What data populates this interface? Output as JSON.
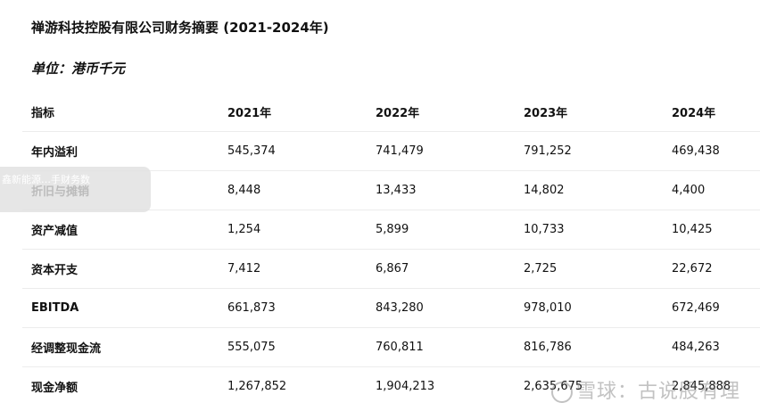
{
  "title": "禅游科技控股有限公司财务摘要 (2021-2024年)",
  "unit": "单位：港币千元",
  "table": {
    "headers": [
      "指标",
      "2021年",
      "2022年",
      "2023年",
      "2024年"
    ],
    "rows": [
      [
        "年内溢利",
        "545,374",
        "741,479",
        "791,252",
        "469,438"
      ],
      [
        "折旧与摊销",
        "8,448",
        "13,433",
        "14,802",
        "4,400"
      ],
      [
        "资产减值",
        "1,254",
        "5,899",
        "10,733",
        "10,425"
      ],
      [
        "资本开支",
        "7,412",
        "6,867",
        "2,725",
        "22,672"
      ],
      [
        "EBITDA",
        "661,873",
        "843,280",
        "978,010",
        "672,469"
      ],
      [
        "经调整现金流",
        "555,075",
        "760,811",
        "816,786",
        "484,263"
      ],
      [
        "现金净额",
        "1,267,852",
        "1,904,213",
        "2,635,675",
        "2,845,888"
      ]
    ]
  },
  "overlay_text": "鑫新能源…手财务数",
  "watermark": "雪球：古说股有理"
}
